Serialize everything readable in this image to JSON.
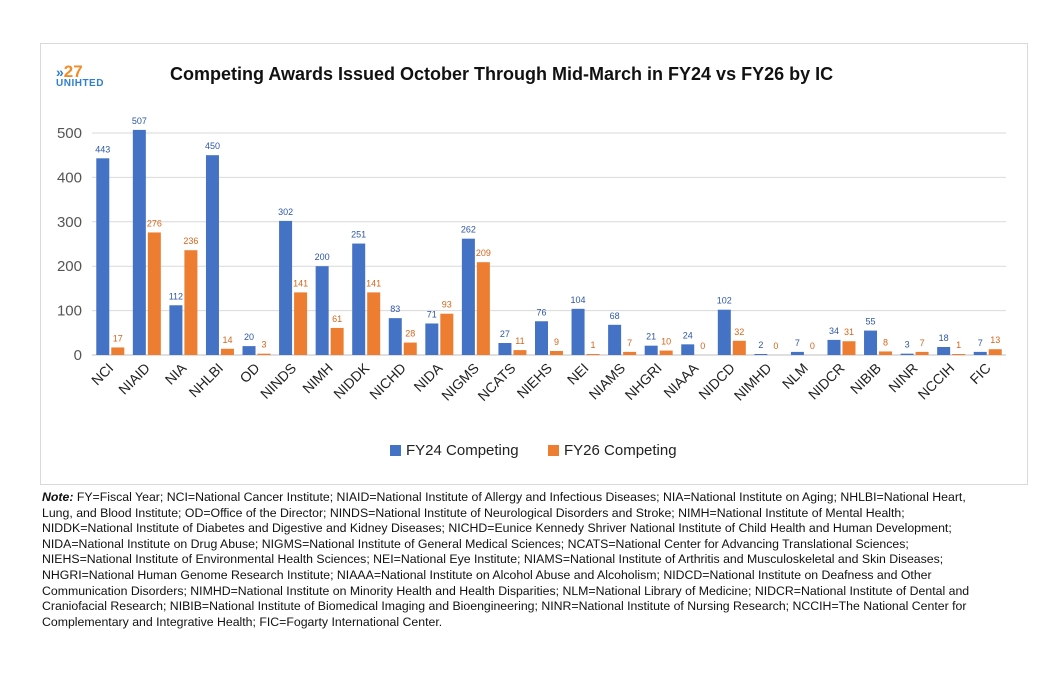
{
  "logo": {
    "number": "27",
    "word": "UNIHTED",
    "icon": "chevron-icon"
  },
  "note": {
    "label": "Note:",
    "text": " FY=Fiscal Year; NCI=National Cancer Institute; NIAID=National Institute of Allergy and Infectious Diseases; NIA=National Institute on Aging; NHLBI=National Heart, Lung, and Blood Institute; OD=Office of the Director; NINDS=National Institute of Neurological Disorders and Stroke; NIMH=National Institute of Mental Health; NIDDK=National Institute of Diabetes and Digestive and Kidney Diseases; NICHD=Eunice Kennedy Shriver National Institute of Child Health and Human Development; NIDA=National Institute on Drug Abuse; NIGMS=National Institute of General Medical Sciences; NCATS=National Center for Advancing Translational Sciences; NIEHS=National Institute of Environmental Health Sciences; NEI=National Eye Institute; NIAMS=National Institute of Arthritis and Musculoskeletal and Skin Diseases; NHGRI=National Human Genome Research Institute; NIAAA=National Institute on Alcohol Abuse and Alcoholism; NIDCD=National Institute on Deafness and Other Communication Disorders; NIMHD=National Institute on Minority Health and Health Disparities; NLM=National Library of Medicine; NIDCR=National Institute of Dental and Craniofacial Research; NIBIB=National Institute of Biomedical Imaging and Bioengineering; NINR=National Institute of Nursing Research; NCCIH=The National Center for Complementary and Integrative Health; FIC=Fogarty International Center."
  },
  "chart_data": {
    "type": "bar",
    "title": "Competing Awards Issued October Through Mid-March in FY24 vs FY26 by IC",
    "xlabel": "",
    "ylabel": "",
    "ylim": [
      0,
      500
    ],
    "yticks": [
      0,
      100,
      200,
      300,
      400,
      500
    ],
    "grid": true,
    "legend_position": "bottom",
    "categories": [
      "NCI",
      "NIAID",
      "NIA",
      "NHLBI",
      "OD",
      "NINDS",
      "NIMH",
      "NIDDK",
      "NICHD",
      "NIDA",
      "NIGMS",
      "NCATS",
      "NIEHS",
      "NEI",
      "NIAMS",
      "NHGRI",
      "NIAAA",
      "NIDCD",
      "NIMHD",
      "NLM",
      "NIDCR",
      "NIBIB",
      "NINR",
      "NCCIH",
      "FIC"
    ],
    "series": [
      {
        "name": "FY24 Competing",
        "color": "#4472c4",
        "label_color": "#2e56a6",
        "values": [
          443,
          507,
          112,
          450,
          20,
          302,
          200,
          251,
          83,
          71,
          262,
          27,
          76,
          104,
          68,
          21,
          24,
          102,
          2,
          7,
          34,
          55,
          3,
          18,
          7
        ]
      },
      {
        "name": "FY26 Competing",
        "color": "#ed7d31",
        "label_color": "#d4651c",
        "values": [
          17,
          276,
          236,
          14,
          3,
          141,
          61,
          141,
          28,
          93,
          209,
          11,
          9,
          1,
          7,
          10,
          0,
          32,
          0,
          0,
          31,
          8,
          7,
          1,
          13
        ]
      }
    ]
  }
}
